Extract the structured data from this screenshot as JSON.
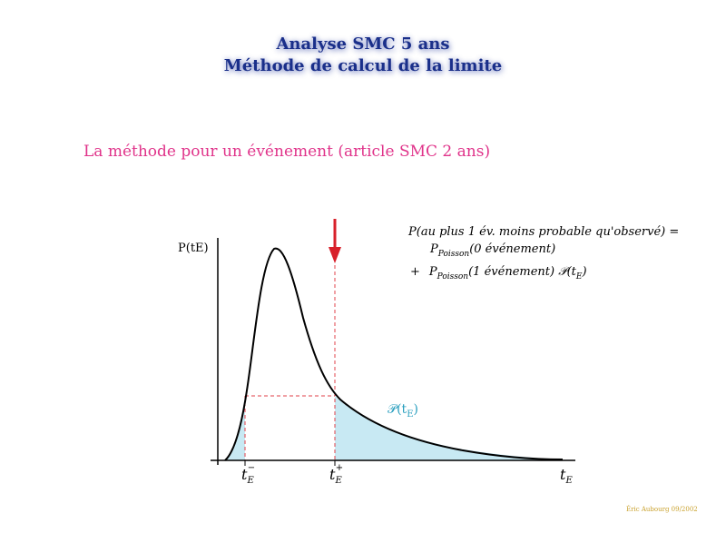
{
  "title": {
    "line1": "Analyse SMC 5 ans",
    "line2": "Méthode de calcul de la limite"
  },
  "subtitle": "La méthode pour un événement (article SMC 2 ans)",
  "diagram": {
    "y_axis_label": "P(tE)",
    "formula": {
      "line1": "P(au plus 1 év. moins probable qu'observé)  =",
      "line2_prefix": "P",
      "line2_sub": "Poisson",
      "line2_rest": "(0 événement)",
      "line3_plus": "+",
      "line3_prefix": "P",
      "line3_sub": "Poisson",
      "line3_rest": "(1 événement) 𝒫(t",
      "line3_sub2": "E",
      "line3_end": ")"
    },
    "shaded_label_main": "𝒫(t",
    "shaded_label_sub": "E",
    "shaded_label_end": ")",
    "x_labels": {
      "t_minus_main": "t",
      "t_minus_sub": "E",
      "t_minus_sup": "−",
      "t_plus_main": "t",
      "t_plus_sub": "E",
      "t_plus_sup": "+",
      "t_axis_main": "t",
      "t_axis_sub": "E"
    },
    "colors": {
      "curve": "#000000",
      "shade": "#c8e9f3",
      "dashed": "#e0404a",
      "arrow": "#d8202a",
      "shaded_label": "#2a9fbf"
    }
  },
  "footer": "Éric Aubourg 09/2002"
}
